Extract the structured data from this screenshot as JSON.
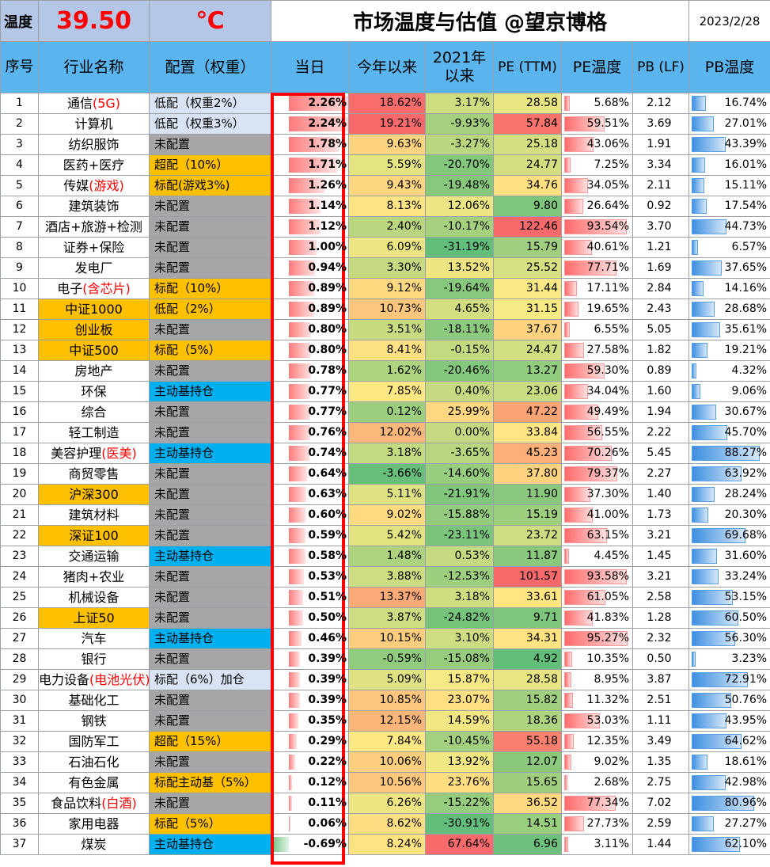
{
  "header": {
    "temp_label": "温度",
    "temp_value": "39.50",
    "temp_unit": "℃",
    "title": "市场温度与估值 @望京博格",
    "date": "2023/2/28"
  },
  "columns": {
    "idx": "序号",
    "name": "行业名称",
    "alloc": "配置（权重）",
    "today": "当日",
    "ytd": "今年以来",
    "since2021": "2021年以来",
    "pe": "PE (TTM)",
    "pe_temp": "PE温度",
    "pb": "PB (LF)",
    "pb_temp": "PB温度"
  },
  "colors": {
    "gold": "#ffc000",
    "gray": "#a6a6a6",
    "light_blue": "#dae3f3",
    "cyan": "#00b0f0",
    "header_blue": "#5ab4ee",
    "red": "#ff0000"
  },
  "rows": [
    {
      "idx": "1",
      "name": "通信",
      "name_red": "(5G)",
      "gold": false,
      "alloc": "低配（权重2%）",
      "alloc_red": "",
      "alloc_style": "lightblue",
      "today": "2.26%",
      "today_v": 2.26,
      "ytd": "18.62%",
      "ytd_v": 18.62,
      "since2021": "3.17%",
      "since2021_v": 3.17,
      "pe": "28.58",
      "pe_v": 28.58,
      "pe_temp": "5.68%",
      "pe_temp_v": 5.68,
      "pb": "2.12",
      "pb_temp": "16.74%",
      "pb_temp_v": 16.74
    },
    {
      "idx": "2",
      "name": "计算机",
      "name_red": "",
      "gold": false,
      "alloc": "低配（权重3%）",
      "alloc_red": "",
      "alloc_style": "lightblue",
      "today": "2.24%",
      "today_v": 2.24,
      "ytd": "19.21%",
      "ytd_v": 19.21,
      "since2021": "-9.93%",
      "since2021_v": -9.93,
      "pe": "57.84",
      "pe_v": 57.84,
      "pe_temp": "59.51%",
      "pe_temp_v": 59.51,
      "pb": "3.69",
      "pb_temp": "27.01%",
      "pb_temp_v": 27.01
    },
    {
      "idx": "3",
      "name": "纺织服饰",
      "name_red": "",
      "gold": false,
      "alloc": "未配置",
      "alloc_red": "",
      "alloc_style": "gray",
      "today": "1.78%",
      "today_v": 1.78,
      "ytd": "9.63%",
      "ytd_v": 9.63,
      "since2021": "-3.27%",
      "since2021_v": -3.27,
      "pe": "25.18",
      "pe_v": 25.18,
      "pe_temp": "43.06%",
      "pe_temp_v": 43.06,
      "pb": "1.91",
      "pb_temp": "43.39%",
      "pb_temp_v": 43.39
    },
    {
      "idx": "4",
      "name": "医药+医疗",
      "name_red": "",
      "gold": false,
      "alloc": "超配（10%）",
      "alloc_red": "",
      "alloc_style": "gold",
      "today": "1.71%",
      "today_v": 1.71,
      "ytd": "5.59%",
      "ytd_v": 5.59,
      "since2021": "-20.70%",
      "since2021_v": -20.7,
      "pe": "24.77",
      "pe_v": 24.77,
      "pe_temp": "7.25%",
      "pe_temp_v": 7.25,
      "pb": "3.34",
      "pb_temp": "16.01%",
      "pb_temp_v": 16.01
    },
    {
      "idx": "5",
      "name": "传媒",
      "name_red": "(游戏)",
      "gold": false,
      "alloc": "标配(游戏3%)",
      "alloc_red": "",
      "alloc_style": "gold",
      "today": "1.26%",
      "today_v": 1.26,
      "ytd": "9.43%",
      "ytd_v": 9.43,
      "since2021": "-19.48%",
      "since2021_v": -19.48,
      "pe": "34.76",
      "pe_v": 34.76,
      "pe_temp": "34.05%",
      "pe_temp_v": 34.05,
      "pb": "2.11",
      "pb_temp": "15.11%",
      "pb_temp_v": 15.11
    },
    {
      "idx": "6",
      "name": "建筑装饰",
      "name_red": "",
      "gold": false,
      "alloc": "未配置",
      "alloc_red": "",
      "alloc_style": "gray",
      "today": "1.14%",
      "today_v": 1.14,
      "ytd": "8.13%",
      "ytd_v": 8.13,
      "since2021": "12.06%",
      "since2021_v": 12.06,
      "pe": "9.80",
      "pe_v": 9.8,
      "pe_temp": "26.64%",
      "pe_temp_v": 26.64,
      "pb": "0.92",
      "pb_temp": "17.54%",
      "pb_temp_v": 17.54
    },
    {
      "idx": "7",
      "name": "酒店+旅游+检测",
      "name_red": "",
      "gold": false,
      "alloc": "未配置",
      "alloc_red": "",
      "alloc_style": "gray",
      "today": "1.12%",
      "today_v": 1.12,
      "ytd": "2.40%",
      "ytd_v": 2.4,
      "since2021": "-10.17%",
      "since2021_v": -10.17,
      "pe": "122.46",
      "pe_v": 122.46,
      "pe_temp": "93.54%",
      "pe_temp_v": 93.54,
      "pb": "3.70",
      "pb_temp": "44.73%",
      "pb_temp_v": 44.73
    },
    {
      "idx": "8",
      "name": "证券+保险",
      "name_red": "",
      "gold": false,
      "alloc": "未配置",
      "alloc_red": "",
      "alloc_style": "gray",
      "today": "1.00%",
      "today_v": 1.0,
      "ytd": "6.09%",
      "ytd_v": 6.09,
      "since2021": "-31.19%",
      "since2021_v": -31.19,
      "pe": "15.79",
      "pe_v": 15.79,
      "pe_temp": "40.61%",
      "pe_temp_v": 40.61,
      "pb": "1.21",
      "pb_temp": "6.57%",
      "pb_temp_v": 6.57
    },
    {
      "idx": "9",
      "name": "发电厂",
      "name_red": "",
      "gold": false,
      "alloc": "未配置",
      "alloc_red": "",
      "alloc_style": "gray",
      "today": "0.94%",
      "today_v": 0.94,
      "ytd": "3.30%",
      "ytd_v": 3.3,
      "since2021": "13.52%",
      "since2021_v": 13.52,
      "pe": "25.52",
      "pe_v": 25.52,
      "pe_temp": "77.71%",
      "pe_temp_v": 77.71,
      "pb": "1.69",
      "pb_temp": "37.65%",
      "pb_temp_v": 37.65
    },
    {
      "idx": "10",
      "name": "电子",
      "name_red": "(含芯片)",
      "gold": false,
      "alloc": "标配（10%）",
      "alloc_red": "",
      "alloc_style": "gold",
      "today": "0.89%",
      "today_v": 0.89,
      "ytd": "9.12%",
      "ytd_v": 9.12,
      "since2021": "-19.64%",
      "since2021_v": -19.64,
      "pe": "31.44",
      "pe_v": 31.44,
      "pe_temp": "17.11%",
      "pe_temp_v": 17.11,
      "pb": "2.84",
      "pb_temp": "14.16%",
      "pb_temp_v": 14.16
    },
    {
      "idx": "11",
      "name": "中证1000",
      "name_red": "",
      "gold": true,
      "alloc": "低配（2%）",
      "alloc_red": "",
      "alloc_style": "gold",
      "today": "0.89%",
      "today_v": 0.89,
      "ytd": "10.73%",
      "ytd_v": 10.73,
      "since2021": "4.65%",
      "since2021_v": 4.65,
      "pe": "31.15",
      "pe_v": 31.15,
      "pe_temp": "19.65%",
      "pe_temp_v": 19.65,
      "pb": "2.43",
      "pb_temp": "28.68%",
      "pb_temp_v": 28.68
    },
    {
      "idx": "12",
      "name": "创业板",
      "name_red": "",
      "gold": true,
      "alloc": "未配置",
      "alloc_red": "",
      "alloc_style": "gray",
      "today": "0.80%",
      "today_v": 0.8,
      "ytd": "3.51%",
      "ytd_v": 3.51,
      "since2021": "-18.11%",
      "since2021_v": -18.11,
      "pe": "37.67",
      "pe_v": 37.67,
      "pe_temp": "6.55%",
      "pe_temp_v": 6.55,
      "pb": "5.05",
      "pb_temp": "35.61%",
      "pb_temp_v": 35.61
    },
    {
      "idx": "13",
      "name": "中证500",
      "name_red": "",
      "gold": true,
      "alloc": "标配（5%）",
      "alloc_red": "",
      "alloc_style": "gold",
      "today": "0.80%",
      "today_v": 0.8,
      "ytd": "8.41%",
      "ytd_v": 8.41,
      "since2021": "-0.15%",
      "since2021_v": -0.15,
      "pe": "24.47",
      "pe_v": 24.47,
      "pe_temp": "27.58%",
      "pe_temp_v": 27.58,
      "pb": "1.82",
      "pb_temp": "19.21%",
      "pb_temp_v": 19.21
    },
    {
      "idx": "14",
      "name": "房地产",
      "name_red": "",
      "gold": false,
      "alloc": "未配置",
      "alloc_red": "",
      "alloc_style": "gray",
      "today": "0.78%",
      "today_v": 0.78,
      "ytd": "1.62%",
      "ytd_v": 1.62,
      "since2021": "-20.46%",
      "since2021_v": -20.46,
      "pe": "13.27",
      "pe_v": 13.27,
      "pe_temp": "59.30%",
      "pe_temp_v": 59.3,
      "pb": "0.89",
      "pb_temp": "4.32%",
      "pb_temp_v": 4.32
    },
    {
      "idx": "15",
      "name": "环保",
      "name_red": "",
      "gold": false,
      "alloc": "主动基持仓",
      "alloc_red": "",
      "alloc_style": "blue",
      "today": "0.77%",
      "today_v": 0.77,
      "ytd": "7.85%",
      "ytd_v": 7.85,
      "since2021": "0.40%",
      "since2021_v": 0.4,
      "pe": "23.06",
      "pe_v": 23.06,
      "pe_temp": "34.04%",
      "pe_temp_v": 34.04,
      "pb": "1.60",
      "pb_temp": "9.06%",
      "pb_temp_v": 9.06
    },
    {
      "idx": "16",
      "name": "综合",
      "name_red": "",
      "gold": false,
      "alloc": "未配置",
      "alloc_red": "",
      "alloc_style": "gray",
      "today": "0.77%",
      "today_v": 0.77,
      "ytd": "0.12%",
      "ytd_v": 0.12,
      "since2021": "25.99%",
      "since2021_v": 25.99,
      "pe": "47.22",
      "pe_v": 47.22,
      "pe_temp": "49.49%",
      "pe_temp_v": 49.49,
      "pb": "1.94",
      "pb_temp": "30.67%",
      "pb_temp_v": 30.67
    },
    {
      "idx": "17",
      "name": "轻工制造",
      "name_red": "",
      "gold": false,
      "alloc": "未配置",
      "alloc_red": "",
      "alloc_style": "gray",
      "today": "0.76%",
      "today_v": 0.76,
      "ytd": "12.02%",
      "ytd_v": 12.02,
      "since2021": "0.00%",
      "since2021_v": 0.0,
      "pe": "33.84",
      "pe_v": 33.84,
      "pe_temp": "56.55%",
      "pe_temp_v": 56.55,
      "pb": "2.22",
      "pb_temp": "45.70%",
      "pb_temp_v": 45.7
    },
    {
      "idx": "18",
      "name": "美容护理",
      "name_red": "(医美)",
      "gold": false,
      "alloc": "主动基持仓",
      "alloc_red": "",
      "alloc_style": "blue",
      "today": "0.74%",
      "today_v": 0.74,
      "ytd": "3.18%",
      "ytd_v": 3.18,
      "since2021": "-3.65%",
      "since2021_v": -3.65,
      "pe": "45.23",
      "pe_v": 45.23,
      "pe_temp": "70.26%",
      "pe_temp_v": 70.26,
      "pb": "5.45",
      "pb_temp": "88.27%",
      "pb_temp_v": 88.27
    },
    {
      "idx": "19",
      "name": "商贸零售",
      "name_red": "",
      "gold": false,
      "alloc": "未配置",
      "alloc_red": "",
      "alloc_style": "gray",
      "today": "0.64%",
      "today_v": 0.64,
      "ytd": "-3.66%",
      "ytd_v": -3.66,
      "since2021": "-14.60%",
      "since2021_v": -14.6,
      "pe": "37.80",
      "pe_v": 37.8,
      "pe_temp": "79.37%",
      "pe_temp_v": 79.37,
      "pb": "2.27",
      "pb_temp": "63.92%",
      "pb_temp_v": 63.92
    },
    {
      "idx": "20",
      "name": "沪深300",
      "name_red": "",
      "gold": true,
      "alloc": "未配置",
      "alloc_red": "",
      "alloc_style": "gray",
      "today": "0.63%",
      "today_v": 0.63,
      "ytd": "5.11%",
      "ytd_v": 5.11,
      "since2021": "-21.91%",
      "since2021_v": -21.91,
      "pe": "11.90",
      "pe_v": 11.9,
      "pe_temp": "37.30%",
      "pe_temp_v": 37.3,
      "pb": "1.40",
      "pb_temp": "28.24%",
      "pb_temp_v": 28.24
    },
    {
      "idx": "21",
      "name": "建筑材料",
      "name_red": "",
      "gold": false,
      "alloc": "未配置",
      "alloc_red": "",
      "alloc_style": "gray",
      "today": "0.60%",
      "today_v": 0.6,
      "ytd": "9.02%",
      "ytd_v": 9.02,
      "since2021": "-15.88%",
      "since2021_v": -15.88,
      "pe": "15.19",
      "pe_v": 15.19,
      "pe_temp": "41.00%",
      "pe_temp_v": 41.0,
      "pb": "1.73",
      "pb_temp": "20.30%",
      "pb_temp_v": 20.3
    },
    {
      "idx": "22",
      "name": "深证100",
      "name_red": "",
      "gold": true,
      "alloc": "未配置",
      "alloc_red": "",
      "alloc_style": "gray",
      "today": "0.59%",
      "today_v": 0.59,
      "ytd": "5.42%",
      "ytd_v": 5.42,
      "since2021": "-23.11%",
      "since2021_v": -23.11,
      "pe": "23.72",
      "pe_v": 23.72,
      "pe_temp": "63.15%",
      "pe_temp_v": 63.15,
      "pb": "3.21",
      "pb_temp": "69.68%",
      "pb_temp_v": 69.68
    },
    {
      "idx": "23",
      "name": "交通运输",
      "name_red": "",
      "gold": false,
      "alloc": "主动基持仓",
      "alloc_red": "",
      "alloc_style": "blue",
      "today": "0.58%",
      "today_v": 0.58,
      "ytd": "1.48%",
      "ytd_v": 1.48,
      "since2021": "0.53%",
      "since2021_v": 0.53,
      "pe": "11.87",
      "pe_v": 11.87,
      "pe_temp": "4.45%",
      "pe_temp_v": 4.45,
      "pb": "1.45",
      "pb_temp": "31.60%",
      "pb_temp_v": 31.6
    },
    {
      "idx": "24",
      "name": "猪肉+农业",
      "name_red": "",
      "gold": false,
      "alloc": "未配置",
      "alloc_red": "",
      "alloc_style": "gray",
      "today": "0.53%",
      "today_v": 0.53,
      "ytd": "3.88%",
      "ytd_v": 3.88,
      "since2021": "-12.53%",
      "since2021_v": -12.53,
      "pe": "101.57",
      "pe_v": 101.57,
      "pe_temp": "93.58%",
      "pe_temp_v": 93.58,
      "pb": "3.21",
      "pb_temp": "33.24%",
      "pb_temp_v": 33.24
    },
    {
      "idx": "25",
      "name": "机械设备",
      "name_red": "",
      "gold": false,
      "alloc": "未配置",
      "alloc_red": "",
      "alloc_style": "gray",
      "today": "0.51%",
      "today_v": 0.51,
      "ytd": "13.37%",
      "ytd_v": 13.37,
      "since2021": "3.18%",
      "since2021_v": 3.18,
      "pe": "33.61",
      "pe_v": 33.61,
      "pe_temp": "61.05%",
      "pe_temp_v": 61.05,
      "pb": "2.58",
      "pb_temp": "53.15%",
      "pb_temp_v": 53.15
    },
    {
      "idx": "26",
      "name": "上证50",
      "name_red": "",
      "gold": true,
      "alloc": "未配置",
      "alloc_red": "",
      "alloc_style": "gray",
      "today": "0.50%",
      "today_v": 0.5,
      "ytd": "3.87%",
      "ytd_v": 3.87,
      "since2021": "-24.82%",
      "since2021_v": -24.82,
      "pe": "9.71",
      "pe_v": 9.71,
      "pe_temp": "41.83%",
      "pe_temp_v": 41.83,
      "pb": "1.28",
      "pb_temp": "60.50%",
      "pb_temp_v": 60.5
    },
    {
      "idx": "27",
      "name": "汽车",
      "name_red": "",
      "gold": false,
      "alloc": "主动基持仓",
      "alloc_red": "",
      "alloc_style": "blue",
      "today": "0.46%",
      "today_v": 0.46,
      "ytd": "10.15%",
      "ytd_v": 10.15,
      "since2021": "3.10%",
      "since2021_v": 3.1,
      "pe": "34.31",
      "pe_v": 34.31,
      "pe_temp": "95.27%",
      "pe_temp_v": 95.27,
      "pb": "2.32",
      "pb_temp": "56.30%",
      "pb_temp_v": 56.3
    },
    {
      "idx": "28",
      "name": "银行",
      "name_red": "",
      "gold": false,
      "alloc": "未配置",
      "alloc_red": "",
      "alloc_style": "gray",
      "today": "0.39%",
      "today_v": 0.39,
      "ytd": "-0.59%",
      "ytd_v": -0.59,
      "since2021": "-15.08%",
      "since2021_v": -15.08,
      "pe": "4.92",
      "pe_v": 4.92,
      "pe_temp": "10.35%",
      "pe_temp_v": 10.35,
      "pb": "0.50",
      "pb_temp": "3.23%",
      "pb_temp_v": 3.23
    },
    {
      "idx": "29",
      "name": "电力设备",
      "name_red": "(电池光伏)",
      "gold": false,
      "alloc": "标配（6%）加仓",
      "alloc_red": "",
      "alloc_style": "lightblue",
      "today": "0.39%",
      "today_v": 0.39,
      "ytd": "5.09%",
      "ytd_v": 5.09,
      "since2021": "15.87%",
      "since2021_v": 15.87,
      "pe": "28.58",
      "pe_v": 28.58,
      "pe_temp": "8.95%",
      "pe_temp_v": 8.95,
      "pb": "3.87",
      "pb_temp": "72.91%",
      "pb_temp_v": 72.91
    },
    {
      "idx": "30",
      "name": "基础化工",
      "name_red": "",
      "gold": false,
      "alloc": "未配置",
      "alloc_red": "",
      "alloc_style": "gray",
      "today": "0.39%",
      "today_v": 0.39,
      "ytd": "10.85%",
      "ytd_v": 10.85,
      "since2021": "23.07%",
      "since2021_v": 23.07,
      "pe": "15.82",
      "pe_v": 15.82,
      "pe_temp": "11.32%",
      "pe_temp_v": 11.32,
      "pb": "2.51",
      "pb_temp": "50.76%",
      "pb_temp_v": 50.76
    },
    {
      "idx": "31",
      "name": "钢铁",
      "name_red": "",
      "gold": false,
      "alloc": "未配置",
      "alloc_red": "",
      "alloc_style": "gray",
      "today": "0.35%",
      "today_v": 0.35,
      "ytd": "12.15%",
      "ytd_v": 12.15,
      "since2021": "14.59%",
      "since2021_v": 14.59,
      "pe": "18.36",
      "pe_v": 18.36,
      "pe_temp": "53.03%",
      "pe_temp_v": 53.03,
      "pb": "1.11",
      "pb_temp": "43.95%",
      "pb_temp_v": 43.95
    },
    {
      "idx": "32",
      "name": "国防军工",
      "name_red": "",
      "gold": false,
      "alloc": "超配（15%）",
      "alloc_red": "",
      "alloc_style": "gold",
      "today": "0.29%",
      "today_v": 0.29,
      "ytd": "7.84%",
      "ytd_v": 7.84,
      "since2021": "-10.45%",
      "since2021_v": -10.45,
      "pe": "55.18",
      "pe_v": 55.18,
      "pe_temp": "12.35%",
      "pe_temp_v": 12.35,
      "pb": "3.49",
      "pb_temp": "64.62%",
      "pb_temp_v": 64.62
    },
    {
      "idx": "33",
      "name": "石油石化",
      "name_red": "",
      "gold": false,
      "alloc": "未配置",
      "alloc_red": "",
      "alloc_style": "gray",
      "today": "0.22%",
      "today_v": 0.22,
      "ytd": "10.06%",
      "ytd_v": 10.06,
      "since2021": "13.92%",
      "since2021_v": 13.92,
      "pe": "12.07",
      "pe_v": 12.07,
      "pe_temp": "9.02%",
      "pe_temp_v": 9.02,
      "pb": "1.35",
      "pb_temp": "18.61%",
      "pb_temp_v": 18.61
    },
    {
      "idx": "34",
      "name": "有色金属",
      "name_red": "",
      "gold": false,
      "alloc": "标配主动基（5%）",
      "alloc_red": "",
      "alloc_style": "gold",
      "today": "0.12%",
      "today_v": 0.12,
      "ytd": "10.56%",
      "ytd_v": 10.56,
      "since2021": "23.76%",
      "since2021_v": 23.76,
      "pe": "15.65",
      "pe_v": 15.65,
      "pe_temp": "2.68%",
      "pe_temp_v": 2.68,
      "pb": "2.75",
      "pb_temp": "42.98%",
      "pb_temp_v": 42.98
    },
    {
      "idx": "35",
      "name": "食品饮料",
      "name_red": "(白酒)",
      "gold": false,
      "alloc": "未配置",
      "alloc_red": "",
      "alloc_style": "gray",
      "today": "0.11%",
      "today_v": 0.11,
      "ytd": "6.26%",
      "ytd_v": 6.26,
      "since2021": "-15.22%",
      "since2021_v": -15.22,
      "pe": "36.52",
      "pe_v": 36.52,
      "pe_temp": "77.34%",
      "pe_temp_v": 77.34,
      "pb": "7.02",
      "pb_temp": "80.96%",
      "pb_temp_v": 80.96
    },
    {
      "idx": "36",
      "name": "家用电器",
      "name_red": "",
      "gold": false,
      "alloc": "标配（5%）",
      "alloc_red": "",
      "alloc_style": "gold",
      "today": "0.06%",
      "today_v": 0.06,
      "ytd": "8.62%",
      "ytd_v": 8.62,
      "since2021": "-30.91%",
      "since2021_v": -30.91,
      "pe": "14.51",
      "pe_v": 14.51,
      "pe_temp": "27.73%",
      "pe_temp_v": 27.73,
      "pb": "2.59",
      "pb_temp": "27.27%",
      "pb_temp_v": 27.27
    },
    {
      "idx": "37",
      "name": "煤炭",
      "name_red": "",
      "gold": false,
      "alloc": "主动基持仓",
      "alloc_red": "",
      "alloc_style": "blue",
      "today": "-0.69%",
      "today_v": -0.69,
      "ytd": "8.24%",
      "ytd_v": 8.24,
      "since2021": "67.64%",
      "since2021_v": 67.64,
      "pe": "6.96",
      "pe_v": 6.96,
      "pe_temp": "3.11%",
      "pe_temp_v": 3.11,
      "pb": "1.44",
      "pb_temp": "62.10%",
      "pb_temp_v": 62.1
    }
  ]
}
